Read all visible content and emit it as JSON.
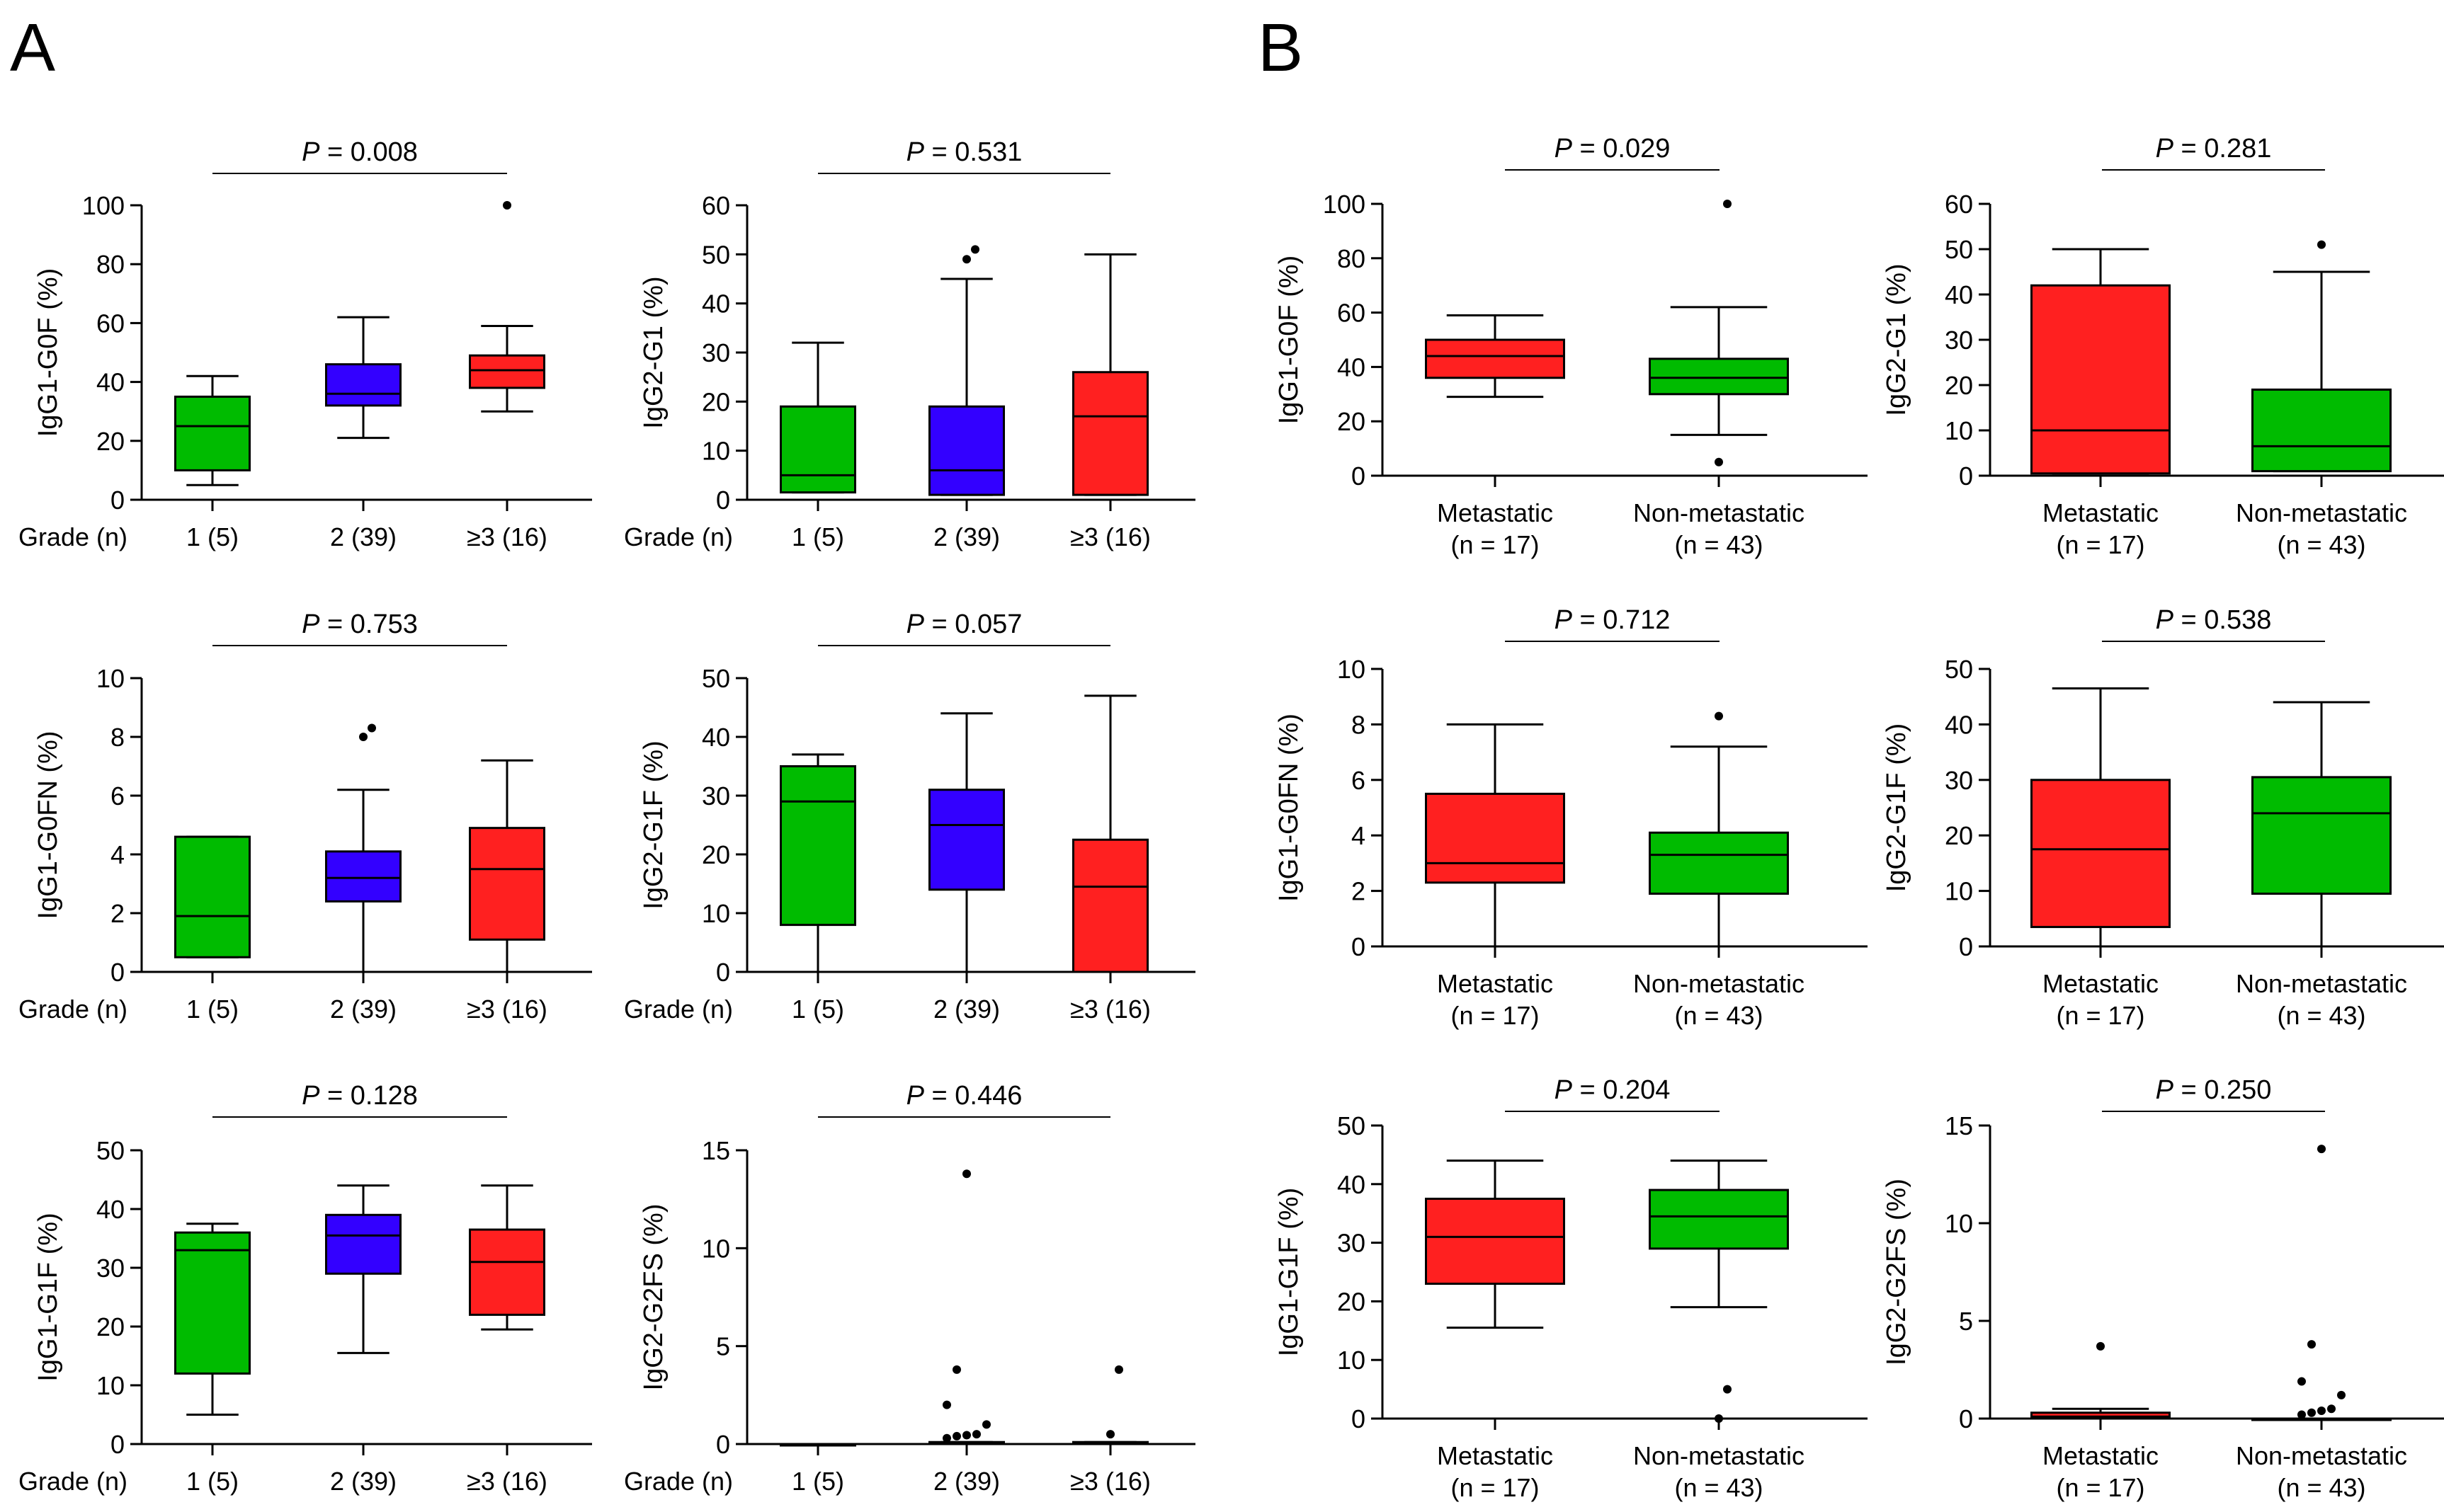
{
  "figure": {
    "panel_a_label": "A",
    "panel_b_label": "B",
    "colors": {
      "grade1": "#00bb00",
      "grade2": "#3300ff",
      "grade3": "#ff2020",
      "metastatic": "#ff2020",
      "nonmetastatic": "#00bb00"
    }
  },
  "chart_data": [
    {
      "panel": "A",
      "type": "box",
      "ylabel": "IgG1-G0F (%)",
      "ylim": [
        0,
        100
      ],
      "yticks": [
        0,
        20,
        40,
        60,
        80,
        100
      ],
      "x_title": "Grade (n)",
      "p_italic": "P",
      "p_rest": " = 0.008",
      "categories": [
        "1 (5)",
        "2 (39)",
        "≥3 (16)"
      ],
      "series": [
        {
          "name": "1 (5)",
          "color": "#00bb00",
          "whisker_low": 5,
          "q1": 10,
          "median": 25,
          "q3": 35,
          "whisker_high": 42,
          "outliers": []
        },
        {
          "name": "2 (39)",
          "color": "#3300ff",
          "whisker_low": 21,
          "q1": 32,
          "median": 36,
          "q3": 46,
          "whisker_high": 62,
          "outliers": []
        },
        {
          "name": "≥3 (16)",
          "color": "#ff2020",
          "whisker_low": 30,
          "q1": 38,
          "median": 44,
          "q3": 49,
          "whisker_high": 59,
          "outliers": [
            100
          ]
        }
      ]
    },
    {
      "panel": "A",
      "type": "box",
      "ylabel": "IgG2-G1 (%)",
      "ylim": [
        0,
        60
      ],
      "yticks": [
        0,
        10,
        20,
        30,
        40,
        50,
        60
      ],
      "x_title": "Grade (n)",
      "p_italic": "P",
      "p_rest": " = 0.531",
      "categories": [
        "1 (5)",
        "2 (39)",
        "≥3 (16)"
      ],
      "series": [
        {
          "name": "1 (5)",
          "color": "#00bb00",
          "whisker_low": 1.5,
          "q1": 1.5,
          "median": 5,
          "q3": 19,
          "whisker_high": 32,
          "outliers": []
        },
        {
          "name": "2 (39)",
          "color": "#3300ff",
          "whisker_low": 1,
          "q1": 1,
          "median": 6,
          "q3": 19,
          "whisker_high": 45,
          "outliers": [
            49,
            51
          ]
        },
        {
          "name": "≥3 (16)",
          "color": "#ff2020",
          "whisker_low": 1,
          "q1": 1,
          "median": 17,
          "q3": 26,
          "whisker_high": 50,
          "outliers": []
        }
      ]
    },
    {
      "panel": "A",
      "type": "box",
      "ylabel": "IgG1-G0FN (%)",
      "ylim": [
        0,
        10
      ],
      "yticks": [
        0,
        2,
        4,
        6,
        8,
        10
      ],
      "x_title": "Grade (n)",
      "p_italic": "P",
      "p_rest": " = 0.753",
      "categories": [
        "1 (5)",
        "2 (39)",
        "≥3 (16)"
      ],
      "series": [
        {
          "name": "1 (5)",
          "color": "#00bb00",
          "whisker_low": 0.5,
          "q1": 0.5,
          "median": 1.9,
          "q3": 4.6,
          "whisker_high": 4.6,
          "outliers": []
        },
        {
          "name": "2 (39)",
          "color": "#3300ff",
          "whisker_low": 0,
          "q1": 2.4,
          "median": 3.2,
          "q3": 4.1,
          "whisker_high": 6.2,
          "outliers": [
            8.0,
            8.3
          ]
        },
        {
          "name": "≥3 (16)",
          "color": "#ff2020",
          "whisker_low": 0,
          "q1": 1.1,
          "median": 3.5,
          "q3": 4.9,
          "whisker_high": 7.2,
          "outliers": []
        }
      ]
    },
    {
      "panel": "A",
      "type": "box",
      "ylabel": "IgG2-G1F (%)",
      "ylim": [
        0,
        50
      ],
      "yticks": [
        0,
        10,
        20,
        30,
        40,
        50
      ],
      "x_title": "Grade (n)",
      "p_italic": "P",
      "p_rest": " = 0.057",
      "categories": [
        "1 (5)",
        "2 (39)",
        "≥3 (16)"
      ],
      "series": [
        {
          "name": "1 (5)",
          "color": "#00bb00",
          "whisker_low": 0,
          "q1": 8,
          "median": 29,
          "q3": 35,
          "whisker_high": 37,
          "outliers": []
        },
        {
          "name": "2 (39)",
          "color": "#3300ff",
          "whisker_low": 0,
          "q1": 14,
          "median": 25,
          "q3": 31,
          "whisker_high": 44,
          "outliers": []
        },
        {
          "name": "≥3 (16)",
          "color": "#ff2020",
          "whisker_low": 0,
          "q1": 0,
          "median": 14.5,
          "q3": 22.5,
          "whisker_high": 47,
          "outliers": []
        }
      ]
    },
    {
      "panel": "A",
      "type": "box",
      "ylabel": "IgG1-G1F (%)",
      "ylim": [
        0,
        50
      ],
      "yticks": [
        0,
        10,
        20,
        30,
        40,
        50
      ],
      "x_title": "Grade (n)",
      "p_italic": "P",
      "p_rest": " = 0.128",
      "categories": [
        "1 (5)",
        "2 (39)",
        "≥3 (16)"
      ],
      "series": [
        {
          "name": "1 (5)",
          "color": "#00bb00",
          "whisker_low": 5,
          "q1": 12,
          "median": 33,
          "q3": 36,
          "whisker_high": 37.5,
          "outliers": []
        },
        {
          "name": "2 (39)",
          "color": "#3300ff",
          "whisker_low": 15.5,
          "q1": 29,
          "median": 35.5,
          "q3": 39,
          "whisker_high": 44,
          "outliers": []
        },
        {
          "name": "≥3 (16)",
          "color": "#ff2020",
          "whisker_low": 19.5,
          "q1": 22,
          "median": 31,
          "q3": 36.5,
          "whisker_high": 44,
          "outliers": []
        }
      ]
    },
    {
      "panel": "A",
      "type": "box",
      "ylabel": "IgG2-G2FS (%)",
      "ylim": [
        0,
        15
      ],
      "yticks": [
        0,
        5,
        10,
        15
      ],
      "x_title": "Grade (n)",
      "p_italic": "P",
      "p_rest": " = 0.446",
      "categories": [
        "1 (5)",
        "2 (39)",
        "≥3 (16)"
      ],
      "series": [
        {
          "name": "1 (5)",
          "color": "#00bb00",
          "whisker_low": 0,
          "q1": 0,
          "median": 0,
          "q3": 0,
          "whisker_high": 0,
          "outliers": []
        },
        {
          "name": "2 (39)",
          "color": "#3300ff",
          "whisker_low": 0,
          "q1": 0,
          "median": 0.05,
          "q3": 0.1,
          "whisker_high": 0.1,
          "outliers": [
            0.3,
            0.4,
            0.45,
            0.5,
            1.0,
            2.0,
            3.8,
            13.8
          ]
        },
        {
          "name": "≥3 (16)",
          "color": "#ff2020",
          "whisker_low": 0,
          "q1": 0,
          "median": 0.05,
          "q3": 0.1,
          "whisker_high": 0.1,
          "outliers": [
            0.5,
            3.8
          ]
        }
      ]
    },
    {
      "panel": "B",
      "type": "box",
      "ylabel": "IgG1-G0F (%)",
      "ylim": [
        0,
        100
      ],
      "yticks": [
        0,
        20,
        40,
        60,
        80,
        100
      ],
      "x_title": "",
      "p_italic": "P",
      "p_rest": " = 0.029",
      "categories": [
        "Metastatic",
        "Non-metastatic"
      ],
      "category_counts": [
        "(n = 17)",
        "(n = 43)"
      ],
      "series": [
        {
          "name": "Metastatic",
          "color": "#ff2020",
          "whisker_low": 29,
          "q1": 36,
          "median": 44,
          "q3": 50,
          "whisker_high": 59,
          "outliers": []
        },
        {
          "name": "Non-metastatic",
          "color": "#00bb00",
          "whisker_low": 15,
          "q1": 30,
          "median": 36,
          "q3": 43,
          "whisker_high": 62,
          "outliers": [
            5,
            100
          ]
        }
      ]
    },
    {
      "panel": "B",
      "type": "box",
      "ylabel": "IgG2-G1 (%)",
      "ylim": [
        0,
        60
      ],
      "yticks": [
        0,
        10,
        20,
        30,
        40,
        50,
        60
      ],
      "x_title": "",
      "p_italic": "P",
      "p_rest": " = 0.281",
      "categories": [
        "Metastatic",
        "Non-metastatic"
      ],
      "category_counts": [
        "(n = 17)",
        "(n = 43)"
      ],
      "series": [
        {
          "name": "Metastatic",
          "color": "#ff2020",
          "whisker_low": 0.5,
          "q1": 0.5,
          "median": 10,
          "q3": 42,
          "whisker_high": 50,
          "outliers": []
        },
        {
          "name": "Non-metastatic",
          "color": "#00bb00",
          "whisker_low": 1,
          "q1": 1,
          "median": 6.5,
          "q3": 19,
          "whisker_high": 45,
          "outliers": [
            51
          ]
        }
      ]
    },
    {
      "panel": "B",
      "type": "box",
      "ylabel": "IgG1-G0FN (%)",
      "ylim": [
        0,
        10
      ],
      "yticks": [
        0,
        2,
        4,
        6,
        8,
        10
      ],
      "x_title": "",
      "p_italic": "P",
      "p_rest": " = 0.712",
      "categories": [
        "Metastatic",
        "Non-metastatic"
      ],
      "category_counts": [
        "(n = 17)",
        "(n = 43)"
      ],
      "series": [
        {
          "name": "Metastatic",
          "color": "#ff2020",
          "whisker_low": 0,
          "q1": 2.3,
          "median": 3.0,
          "q3": 5.5,
          "whisker_high": 8.0,
          "outliers": []
        },
        {
          "name": "Non-metastatic",
          "color": "#00bb00",
          "whisker_low": 0,
          "q1": 1.9,
          "median": 3.3,
          "q3": 4.1,
          "whisker_high": 7.2,
          "outliers": [
            8.3
          ]
        }
      ]
    },
    {
      "panel": "B",
      "type": "box",
      "ylabel": "IgG2-G1F (%)",
      "ylim": [
        0,
        50
      ],
      "yticks": [
        0,
        10,
        20,
        30,
        40,
        50
      ],
      "x_title": "",
      "p_italic": "P",
      "p_rest": " = 0.538",
      "categories": [
        "Metastatic",
        "Non-metastatic"
      ],
      "category_counts": [
        "(n = 17)",
        "(n = 43)"
      ],
      "series": [
        {
          "name": "Metastatic",
          "color": "#ff2020",
          "whisker_low": 0,
          "q1": 3.5,
          "median": 17.5,
          "q3": 30,
          "whisker_high": 46.5,
          "outliers": []
        },
        {
          "name": "Non-metastatic",
          "color": "#00bb00",
          "whisker_low": 0,
          "q1": 9.5,
          "median": 24,
          "q3": 30.5,
          "whisker_high": 44,
          "outliers": []
        }
      ]
    },
    {
      "panel": "B",
      "type": "box",
      "ylabel": "IgG1-G1F (%)",
      "ylim": [
        0,
        50
      ],
      "yticks": [
        0,
        10,
        20,
        30,
        40,
        50
      ],
      "x_title": "",
      "p_italic": "P",
      "p_rest": " = 0.204",
      "categories": [
        "Metastatic",
        "Non-metastatic"
      ],
      "category_counts": [
        "(n = 17)",
        "(n = 43)"
      ],
      "series": [
        {
          "name": "Metastatic",
          "color": "#ff2020",
          "whisker_low": 15.5,
          "q1": 23,
          "median": 31,
          "q3": 37.5,
          "whisker_high": 44,
          "outliers": []
        },
        {
          "name": "Non-metastatic",
          "color": "#00bb00",
          "whisker_low": 19,
          "q1": 29,
          "median": 34.5,
          "q3": 39,
          "whisker_high": 44,
          "outliers": [
            0,
            5
          ]
        }
      ]
    },
    {
      "panel": "B",
      "type": "box",
      "ylabel": "IgG2-G2FS (%)",
      "ylim": [
        0,
        15
      ],
      "yticks": [
        0,
        5,
        10,
        15
      ],
      "x_title": "",
      "p_italic": "P",
      "p_rest": " = 0.250",
      "categories": [
        "Metastatic",
        "Non-metastatic"
      ],
      "category_counts": [
        "(n = 17)",
        "(n = 43)"
      ],
      "series": [
        {
          "name": "Metastatic",
          "color": "#ff2020",
          "whisker_low": 0,
          "q1": 0,
          "median": 0.1,
          "q3": 0.3,
          "whisker_high": 0.5,
          "outliers": [
            3.7
          ]
        },
        {
          "name": "Non-metastatic",
          "color": "#00bb00",
          "whisker_low": 0,
          "q1": 0,
          "median": 0,
          "q3": 0,
          "whisker_high": 0,
          "outliers": [
            0.2,
            0.3,
            0.4,
            0.5,
            1.2,
            1.9,
            3.8,
            13.8
          ]
        }
      ]
    }
  ]
}
